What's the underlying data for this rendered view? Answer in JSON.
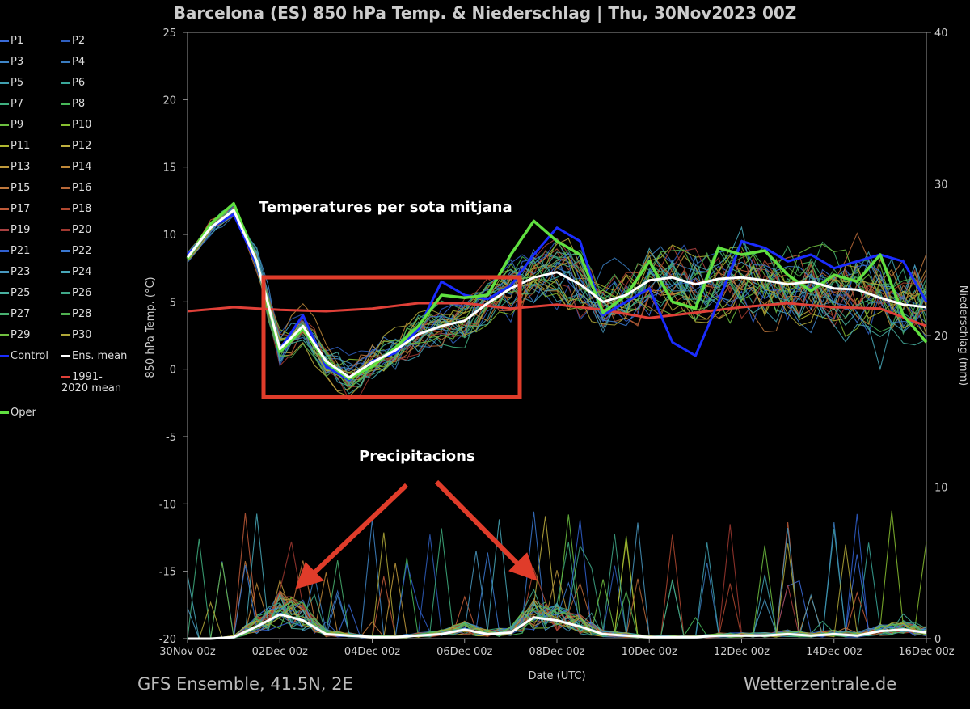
{
  "title": "Barcelona  (ES)  850 hPa Temp. & Niederschlag | Thu, 30Nov2023 00Z",
  "footer_left": "GFS Ensemble, 41.5N, 2E",
  "footer_right": "Wetterzentrale.de",
  "annotation_temp": "Temperatures per sota mitjana",
  "annotation_precip": "Precipitacions",
  "legend": [
    {
      "label": "P1",
      "color": "#3a6bd8"
    },
    {
      "label": "P2",
      "color": "#2f5fc0"
    },
    {
      "label": "P3",
      "color": "#3f86c8"
    },
    {
      "label": "P4",
      "color": "#3a7cbf"
    },
    {
      "label": "P5",
      "color": "#40a0b0"
    },
    {
      "label": "P6",
      "color": "#3aa89a"
    },
    {
      "label": "P7",
      "color": "#3fb080"
    },
    {
      "label": "P8",
      "color": "#48b858"
    },
    {
      "label": "P9",
      "color": "#6cc040"
    },
    {
      "label": "P10",
      "color": "#88c030"
    },
    {
      "label": "P11",
      "color": "#b0b830"
    },
    {
      "label": "P12",
      "color": "#c0b040"
    },
    {
      "label": "P13",
      "color": "#c09a3c"
    },
    {
      "label": "P14",
      "color": "#c08838"
    },
    {
      "label": "P15",
      "color": "#c0783c"
    },
    {
      "label": "P16",
      "color": "#b86838"
    },
    {
      "label": "P17",
      "color": "#c05a38"
    },
    {
      "label": "P18",
      "color": "#b04830"
    },
    {
      "label": "P19",
      "color": "#a84040"
    },
    {
      "label": "P20",
      "color": "#a03830"
    },
    {
      "label": "P21",
      "color": "#3060d0"
    },
    {
      "label": "P22",
      "color": "#3a78d0"
    },
    {
      "label": "P23",
      "color": "#4898c0"
    },
    {
      "label": "P24",
      "color": "#48a8b8"
    },
    {
      "label": "P25",
      "color": "#48b0a0"
    },
    {
      "label": "P26",
      "color": "#40a888"
    },
    {
      "label": "P27",
      "color": "#48b070"
    },
    {
      "label": "P28",
      "color": "#50b050"
    },
    {
      "label": "P29",
      "color": "#70c040"
    },
    {
      "label": "P30",
      "color": "#b0a838"
    },
    {
      "label": "Control",
      "color": "#1a2cff"
    },
    {
      "label": "Ens. mean",
      "color": "#ffffff"
    },
    {
      "label": "1991-2020 mean",
      "color": "#e04038"
    },
    {
      "label": "Oper",
      "color": "#60e040"
    }
  ],
  "chart_data": {
    "type": "line",
    "title": "Barcelona  (ES)  850 hPa Temp. & Niederschlag | Thu, 30Nov2023 00Z",
    "xlabel": "Date (UTC)",
    "ylabel": "850 hPa Temp. (°C)",
    "y2label": "Niederschlag (mm)",
    "xlim": [
      "30Nov 00z",
      "16Dec 00z"
    ],
    "ylim": [
      -20,
      25
    ],
    "y2lim": [
      0,
      40
    ],
    "x_ticks": [
      "30Nov 00z",
      "02Dec 00z",
      "04Dec 00z",
      "06Dec 00z",
      "08Dec 00z",
      "10Dec 00z",
      "12Dec 00z",
      "14Dec 00z",
      "16Dec 00z"
    ],
    "y_ticks": [
      25,
      20,
      15,
      10,
      5,
      0,
      -5,
      -10,
      -15,
      -20
    ],
    "y2_ticks": [
      40,
      30,
      20,
      10,
      0
    ],
    "grid": false,
    "legend_position": "left",
    "series": [
      {
        "name": "Ens. mean",
        "axis": "temp",
        "x_days": [
          0,
          0.5,
          1,
          1.5,
          2,
          2.5,
          3,
          3.5,
          4,
          4.5,
          5,
          5.5,
          6,
          6.5,
          7,
          7.5,
          8,
          8.5,
          9,
          9.5,
          10,
          10.5,
          11,
          11.5,
          12,
          12.5,
          13,
          13.5,
          14,
          14.5,
          15,
          15.5,
          16
        ],
        "values": [
          8.3,
          10.5,
          11.8,
          8,
          1.5,
          3.2,
          0.6,
          -0.6,
          0.5,
          1.4,
          2.6,
          3.2,
          3.6,
          4.9,
          6,
          6.8,
          7.2,
          6.3,
          5.0,
          5.5,
          6.6,
          6.8,
          6.3,
          6.7,
          6.8,
          6.6,
          6.3,
          6.5,
          6.0,
          5.9,
          5.3,
          4.8,
          4.6
        ]
      },
      {
        "name": "Control",
        "axis": "temp",
        "x_days": [
          0,
          0.5,
          1,
          1.5,
          2,
          2.5,
          3,
          3.5,
          4,
          4.5,
          5,
          5.5,
          6,
          6.5,
          7,
          7.5,
          8,
          8.5,
          9,
          9.5,
          10,
          10.5,
          11,
          11.5,
          12,
          12.5,
          13,
          13.5,
          14,
          14.5,
          15,
          15.5,
          16
        ],
        "values": [
          8.5,
          10.5,
          11.5,
          7.8,
          1.5,
          4,
          0.2,
          -0.8,
          0.6,
          1.2,
          3,
          6.5,
          5.5,
          5.2,
          6.2,
          8.5,
          10.5,
          9.5,
          4,
          5,
          6,
          2,
          1,
          5,
          9.5,
          9,
          8,
          8.5,
          7.5,
          8,
          8.5,
          8,
          5
        ]
      },
      {
        "name": "Oper",
        "axis": "temp",
        "x_days": [
          0,
          0.5,
          1,
          1.5,
          2,
          2.5,
          3,
          3.5,
          4,
          4.5,
          5,
          5.5,
          6,
          6.5,
          7,
          7.5,
          8,
          8.5,
          9,
          9.5,
          10,
          10.5,
          11,
          11.5,
          12,
          12.5,
          13,
          13.5,
          14,
          14.5,
          15,
          15.5,
          16
        ],
        "values": [
          8.2,
          10.8,
          12.3,
          8,
          1.3,
          3.0,
          0.5,
          -0.7,
          0.2,
          1.6,
          3.2,
          5.5,
          5.3,
          5.5,
          8.5,
          11,
          9.5,
          8.5,
          4.2,
          5.5,
          8,
          5,
          4.5,
          9,
          8.5,
          8.8,
          7,
          5.8,
          7,
          6.5,
          8.5,
          4,
          2
        ]
      },
      {
        "name": "1991-2020 mean",
        "axis": "temp",
        "x_days": [
          0,
          1,
          2,
          3,
          4,
          5,
          6,
          7,
          8,
          9,
          10,
          11,
          12,
          13,
          14,
          15,
          16
        ],
        "values": [
          4.3,
          4.6,
          4.4,
          4.3,
          4.5,
          4.9,
          4.9,
          4.5,
          4.8,
          4.4,
          3.8,
          4.2,
          4.6,
          4.9,
          4.6,
          4.5,
          3.2
        ]
      },
      {
        "name": "Ens. mean",
        "axis": "precip",
        "x_days": [
          0,
          0.5,
          1,
          1.5,
          2,
          2.5,
          3,
          3.5,
          4,
          4.5,
          5,
          5.5,
          6,
          6.5,
          7,
          7.5,
          8,
          8.5,
          9,
          9.5,
          10,
          10.5,
          11,
          11.5,
          12,
          12.5,
          13,
          13.5,
          14,
          14.5,
          15,
          15.5,
          16
        ],
        "values": [
          0,
          0,
          0.1,
          0.8,
          1.6,
          1.2,
          0.3,
          0.2,
          0.1,
          0.1,
          0.2,
          0.3,
          0.6,
          0.3,
          0.4,
          1.4,
          1.2,
          0.8,
          0.3,
          0.2,
          0.1,
          0.1,
          0.1,
          0.2,
          0.2,
          0.2,
          0.3,
          0.2,
          0.3,
          0.2,
          0.5,
          0.6,
          0.4
        ]
      }
    ]
  }
}
